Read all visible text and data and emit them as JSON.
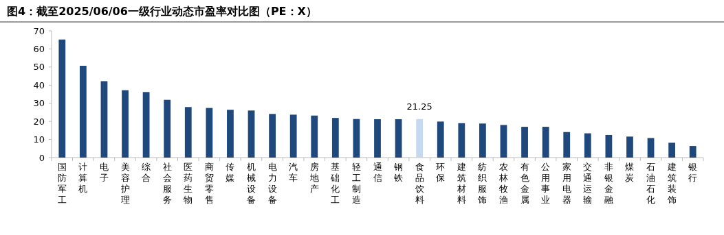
{
  "chart_data": {
    "type": "bar",
    "title": "图4：截至2025/06/06一级行业动态市盈率对比图（PE：X）",
    "categories": [
      "国防军工",
      "计算机",
      "电子",
      "美容护理",
      "综合",
      "社会服务",
      "医药生物",
      "商贸零售",
      "传媒",
      "机械设备",
      "电力设备",
      "汽车",
      "房地产",
      "基础化工",
      "轻工制造",
      "通信",
      "钢铁",
      "食品饮料",
      "环保",
      "建筑材料",
      "纺织服饰",
      "农林牧渔",
      "有色金属",
      "公用事业",
      "家用电器",
      "交通运输",
      "非银金融",
      "煤炭",
      "石油石化",
      "建筑装饰",
      "银行"
    ],
    "values": [
      65.2,
      50.7,
      42.2,
      37.2,
      36.2,
      31.9,
      27.9,
      27.4,
      26.4,
      26.0,
      24.1,
      23.7,
      23.2,
      21.9,
      21.3,
      21.2,
      21.2,
      21.25,
      19.9,
      19.0,
      18.8,
      18.0,
      17.0,
      17.0,
      14.1,
      13.4,
      12.5,
      11.6,
      10.8,
      8.2,
      6.4
    ],
    "colors": [
      "#1f497d",
      "#1f497d",
      "#1f497d",
      "#1f497d",
      "#1f497d",
      "#1f497d",
      "#1f497d",
      "#1f497d",
      "#1f497d",
      "#1f497d",
      "#1f497d",
      "#1f497d",
      "#1f497d",
      "#1f497d",
      "#1f497d",
      "#1f497d",
      "#1f497d",
      "#c6d9f1",
      "#1f497d",
      "#1f497d",
      "#1f497d",
      "#1f497d",
      "#1f497d",
      "#1f497d",
      "#1f497d",
      "#1f497d",
      "#1f497d",
      "#1f497d",
      "#1f497d",
      "#1f497d",
      "#1f497d"
    ],
    "value_labels": [
      null,
      null,
      null,
      null,
      null,
      null,
      null,
      null,
      null,
      null,
      null,
      null,
      null,
      null,
      null,
      null,
      null,
      "21.25",
      null,
      null,
      null,
      null,
      null,
      null,
      null,
      null,
      null,
      null,
      null,
      null,
      null
    ],
    "ylim": [
      0,
      70
    ],
    "yticks": [
      0,
      10,
      20,
      30,
      40,
      50,
      60,
      70
    ],
    "grid": false
  }
}
